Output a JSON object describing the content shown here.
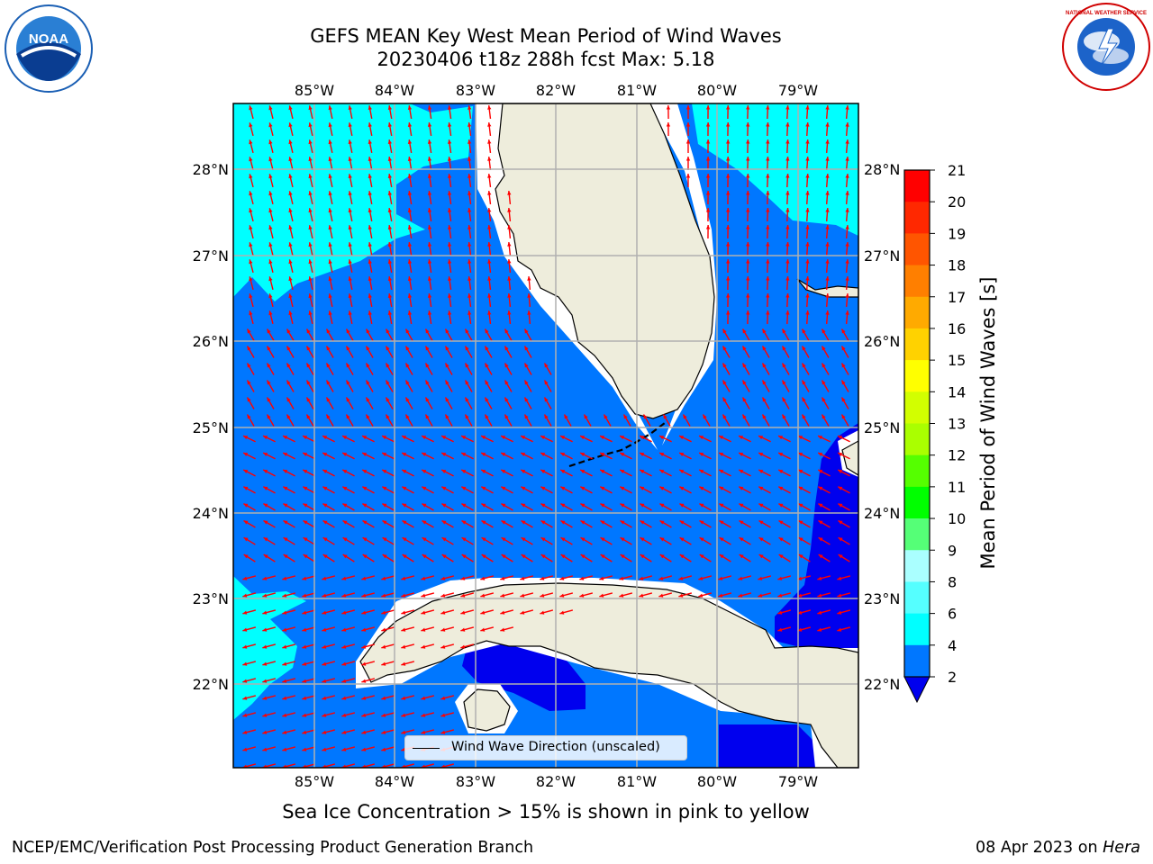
{
  "title": {
    "line1": "GEFS MEAN Key West Mean Period of Wind Waves",
    "line2": "20230406 t18z 288h fcst   Max: 5.18"
  },
  "logos": {
    "left": "noaa-logo",
    "right": "nws-logo",
    "left_text": "NOAA",
    "right_text": "NATIONAL WEATHER SERVICE"
  },
  "map": {
    "lon_ticks": [
      "85°W",
      "84°W",
      "83°W",
      "82°W",
      "81°W",
      "80°W",
      "79°W"
    ],
    "lat_ticks": [
      "28°N",
      "27°N",
      "26°N",
      "25°N",
      "24°N",
      "23°N",
      "22°N"
    ],
    "legend_label": "Wind Wave Direction (unscaled)",
    "colors": {
      "band_2_4": "#0077ff",
      "band_4_6": "#00ffff",
      "under_2": "#0000ee",
      "land": "#eeeddc",
      "arrow": "#ff0000",
      "grid": "#b0b0b0"
    }
  },
  "colorbar": {
    "label": "Mean Period of Wind Waves [s]",
    "ticks": [
      "21",
      "20",
      "19",
      "18",
      "17",
      "16",
      "15",
      "14",
      "13",
      "12",
      "11",
      "10",
      "9",
      "8",
      "6",
      "4",
      "2"
    ],
    "colors": [
      "#ff0000",
      "#ff2800",
      "#ff5500",
      "#ff7f00",
      "#ffaa00",
      "#ffd200",
      "#ffff00",
      "#d2ff00",
      "#aaff00",
      "#55ff00",
      "#00ff00",
      "#55ff77",
      "#aaffff",
      "#55ffff",
      "#00ffff",
      "#0077ff"
    ],
    "under_color": "#0000ee"
  },
  "caption": "Sea Ice Concentration > 15% is shown in pink to yellow",
  "footer": {
    "left": "NCEP/EMC/Verification Post Processing Product Generation Branch",
    "right_date": "08 Apr 2023 on",
    "right_host": "Hera"
  }
}
